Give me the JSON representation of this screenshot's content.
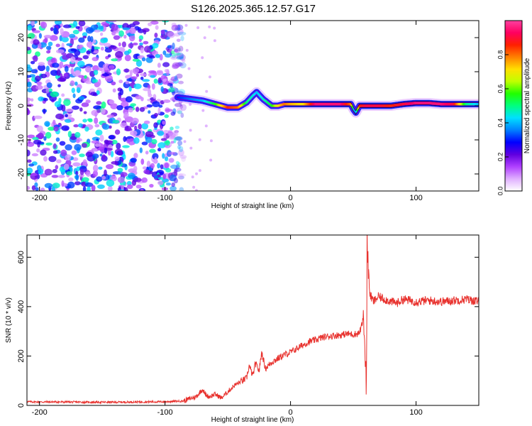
{
  "title": "S126.2025.365.12.57.G17",
  "chart_data": [
    {
      "type": "heatmap",
      "name": "spectrogram",
      "xlabel": "Height of straight line (km)",
      "ylabel": "Frequency (Hz)",
      "xlim": [
        -210,
        150
      ],
      "ylim": [
        -25,
        25
      ],
      "xticks": [
        -200,
        -100,
        0,
        100
      ],
      "yticks": [
        -20,
        -10,
        0,
        10,
        20
      ],
      "noise_region": {
        "x": [
          -210,
          -85
        ],
        "note": "scattered low-amplitude noise"
      },
      "ridge": {
        "x": [
          -90,
          -80,
          -70,
          -60,
          -50,
          -42,
          -35,
          -30,
          -27,
          -22,
          -15,
          -10,
          -5,
          0,
          10,
          20,
          30,
          40,
          48,
          50,
          52,
          55,
          60,
          70,
          80,
          90,
          100,
          110,
          120,
          130,
          140,
          150
        ],
        "freq": [
          2.5,
          2,
          1.5,
          0.5,
          -0.5,
          -0.5,
          1,
          3,
          4,
          2,
          0,
          0,
          0.5,
          0.5,
          0.5,
          0.5,
          0.5,
          0.5,
          0.5,
          -1,
          -2,
          0,
          0,
          0,
          0,
          0.5,
          0.8,
          0.8,
          0.5,
          0.5,
          0.5,
          0.5
        ],
        "amplitude": [
          0.3,
          0.35,
          0.4,
          0.55,
          0.85,
          0.8,
          0.5,
          0.45,
          0.4,
          0.45,
          0.55,
          0.7,
          0.8,
          0.75,
          0.7,
          0.95,
          0.95,
          0.95,
          0.8,
          0.4,
          0.35,
          0.85,
          0.9,
          0.9,
          0.85,
          0.9,
          0.95,
          0.95,
          0.95,
          0.9,
          0.5,
          0.4
        ]
      }
    },
    {
      "type": "colorbar",
      "label": "Normalized spectral amplitude",
      "range": [
        0,
        1
      ],
      "ticks": [
        0.0,
        0.2,
        0.4,
        0.6,
        0.8
      ],
      "tick_labels": [
        "0.0",
        "0.2",
        "0.4",
        "0.6",
        "0.8"
      ],
      "colors": [
        "#ffffff",
        "#e0b0ff",
        "#b040ff",
        "#6000e0",
        "#0000ff",
        "#0080ff",
        "#00e0ff",
        "#00ff80",
        "#20ff00",
        "#c0ff00",
        "#ffe000",
        "#ff8000",
        "#ff2000",
        "#ff0060",
        "#ff40a0"
      ]
    },
    {
      "type": "line",
      "name": "snr",
      "xlabel": "Height of straight line (km)",
      "ylabel": "SNR (10 * v/v)",
      "xlim": [
        -210,
        150
      ],
      "ylim": [
        0,
        690
      ],
      "xticks": [
        -200,
        -100,
        0,
        100
      ],
      "yticks": [
        0,
        200,
        400,
        600
      ],
      "series": [
        {
          "name": "SNR",
          "color": "#e8322e",
          "x": [
            -210,
            -200,
            -180,
            -160,
            -140,
            -120,
            -100,
            -85,
            -80,
            -75,
            -72,
            -70,
            -68,
            -65,
            -60,
            -55,
            -50,
            -45,
            -40,
            -35,
            -33,
            -30,
            -28,
            -25,
            -23,
            -20,
            -15,
            -10,
            -5,
            0,
            5,
            10,
            15,
            20,
            25,
            30,
            35,
            40,
            45,
            50,
            53,
            55,
            57,
            58,
            59,
            60,
            60.5,
            61,
            62,
            63,
            64,
            66,
            70,
            75,
            80,
            85,
            90,
            95,
            100,
            110,
            120,
            130,
            140,
            150
          ],
          "y": [
            15,
            14,
            14,
            13,
            13,
            14,
            15,
            18,
            28,
            35,
            55,
            65,
            45,
            35,
            45,
            30,
            55,
            80,
            95,
            110,
            160,
            120,
            170,
            140,
            215,
            150,
            175,
            190,
            205,
            215,
            230,
            245,
            258,
            265,
            275,
            280,
            283,
            285,
            290,
            288,
            290,
            295,
            330,
            350,
            260,
            120,
            70,
            680,
            560,
            460,
            440,
            420,
            440,
            430,
            420,
            415,
            430,
            425,
            420,
            425,
            420,
            425,
            430,
            420
          ]
        }
      ]
    }
  ]
}
